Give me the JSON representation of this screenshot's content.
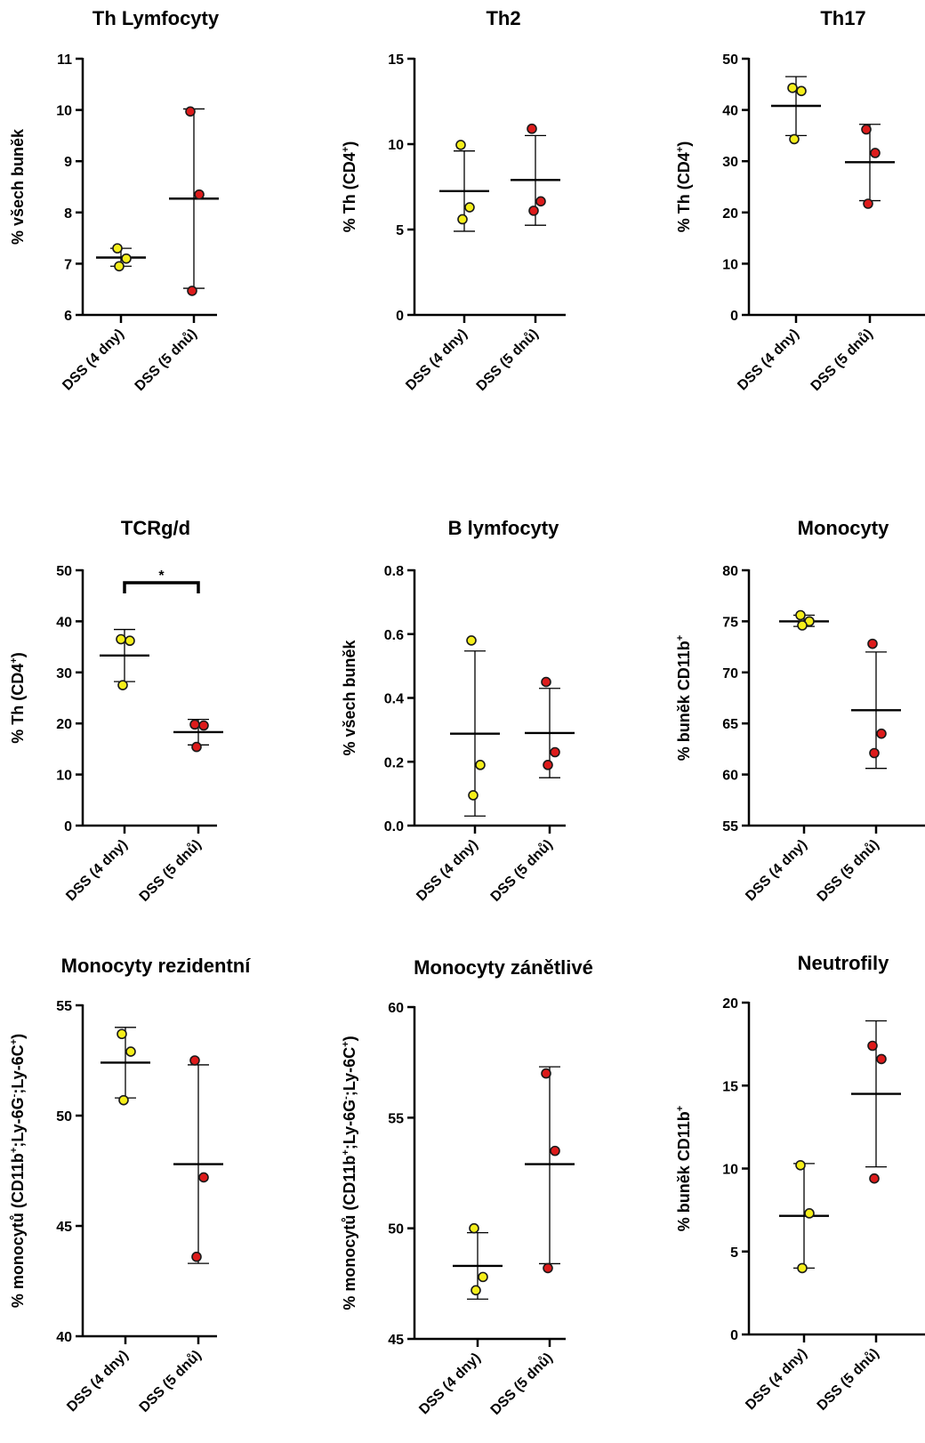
{
  "colors": {
    "group1": "#f5ee1a",
    "group2": "#dd1b1b",
    "stroke": "#1a1a1a"
  },
  "categories": [
    "DSS (4 dny)",
    "DSS (5 dnů)"
  ],
  "chart_data": [
    {
      "type": "scatter",
      "title": "Th Lymfocyty",
      "ylabel_parts": [
        {
          "t": "% všech buněk"
        }
      ],
      "ylim": [
        6,
        11
      ],
      "yticks": [
        6,
        7,
        8,
        9,
        10,
        11
      ],
      "categories": [
        "DSS (4 dny)",
        "DSS (5 dnů)"
      ],
      "groups": [
        {
          "points": [
            7.3,
            7.1,
            6.95
          ],
          "mean": 7.12,
          "err_lo": 6.95,
          "err_hi": 7.3
        },
        {
          "points": [
            9.97,
            8.35,
            6.47
          ],
          "mean": 8.27,
          "err_lo": 6.52,
          "err_hi": 10.02
        }
      ]
    },
    {
      "type": "scatter",
      "title": "Th2",
      "ylabel_parts": [
        {
          "t": "% Th (CD4"
        },
        {
          "t": "+",
          "sup": true
        },
        {
          "t": ")"
        }
      ],
      "ylim": [
        0,
        15
      ],
      "yticks": [
        0,
        5,
        10,
        15
      ],
      "categories": [
        "DSS (4 dny)",
        "DSS (5 dnů)"
      ],
      "groups": [
        {
          "points": [
            9.95,
            6.3,
            5.6
          ],
          "mean": 7.25,
          "err_lo": 4.9,
          "err_hi": 9.6
        },
        {
          "points": [
            10.9,
            6.65,
            6.1
          ],
          "mean": 7.9,
          "err_lo": 5.25,
          "err_hi": 10.5
        }
      ]
    },
    {
      "type": "scatter",
      "title": "Th17",
      "ylabel_parts": [
        {
          "t": "% Th (CD4"
        },
        {
          "t": "+",
          "sup": true
        },
        {
          "t": ")"
        }
      ],
      "ylim": [
        0,
        50
      ],
      "yticks": [
        0,
        10,
        20,
        30,
        40,
        50
      ],
      "categories": [
        "DSS (4 dny)",
        "DSS (5 dnů)"
      ],
      "groups": [
        {
          "points": [
            44.3,
            43.7,
            34.3
          ],
          "mean": 40.8,
          "err_lo": 35.0,
          "err_hi": 46.5
        },
        {
          "points": [
            36.2,
            31.6,
            21.7
          ],
          "mean": 29.8,
          "err_lo": 22.3,
          "err_hi": 37.2
        }
      ]
    },
    {
      "type": "scatter",
      "title": "TCRg/d",
      "ylabel_parts": [
        {
          "t": "% Th (CD4"
        },
        {
          "t": "+",
          "sup": true
        },
        {
          "t": ")"
        }
      ],
      "ylim": [
        0,
        50
      ],
      "yticks": [
        0,
        10,
        20,
        30,
        40,
        50
      ],
      "categories": [
        "DSS (4 dny)",
        "DSS (5 dnů)"
      ],
      "significance": "*",
      "groups": [
        {
          "points": [
            36.5,
            36.2,
            27.5
          ],
          "mean": 33.3,
          "err_lo": 28.2,
          "err_hi": 38.4
        },
        {
          "points": [
            19.8,
            19.6,
            15.4
          ],
          "mean": 18.3,
          "err_lo": 15.8,
          "err_hi": 20.8
        }
      ]
    },
    {
      "type": "scatter",
      "title": "B lymfocyty",
      "ylabel_parts": [
        {
          "t": "% všech buněk"
        }
      ],
      "ylim": [
        0,
        0.8
      ],
      "yticks": [
        0.0,
        0.2,
        0.4,
        0.6,
        0.8
      ],
      "ytick_labels": [
        "0.0",
        "0.2",
        "0.4",
        "0.6",
        "0.8"
      ],
      "categories": [
        "DSS (4 dny)",
        "DSS (5 dnů)"
      ],
      "groups": [
        {
          "points": [
            0.58,
            0.19,
            0.095
          ],
          "mean": 0.288,
          "err_lo": 0.03,
          "err_hi": 0.547
        },
        {
          "points": [
            0.45,
            0.23,
            0.19
          ],
          "mean": 0.29,
          "err_lo": 0.15,
          "err_hi": 0.43
        }
      ]
    },
    {
      "type": "scatter",
      "title": "Monocyty",
      "ylabel_parts": [
        {
          "t": "% buněk CD11b"
        },
        {
          "t": "+",
          "sup": true
        }
      ],
      "ylim": [
        55,
        80
      ],
      "yticks": [
        55,
        60,
        65,
        70,
        75,
        80
      ],
      "categories": [
        "DSS (4 dny)",
        "DSS (5 dnů)"
      ],
      "groups": [
        {
          "points": [
            75.6,
            75.0,
            74.6
          ],
          "mean": 75.0,
          "err_lo": 74.5,
          "err_hi": 75.6
        },
        {
          "points": [
            72.8,
            64.0,
            62.1
          ],
          "mean": 66.3,
          "err_lo": 60.6,
          "err_hi": 72.0
        }
      ]
    },
    {
      "type": "scatter",
      "title": "Monocyty rezidentní",
      "ylabel_parts": [
        {
          "t": "% monocytů (CD11b"
        },
        {
          "t": "+",
          "sup": true
        },
        {
          "t": ";Ly-6G"
        },
        {
          "t": "-",
          "sup": true
        },
        {
          "t": ";Ly-6C"
        },
        {
          "t": "+",
          "sup": true
        },
        {
          "t": ")"
        }
      ],
      "ylim": [
        40,
        55
      ],
      "yticks": [
        40,
        45,
        50,
        55
      ],
      "categories": [
        "DSS (4 dny)",
        "DSS (5 dnů)"
      ],
      "groups": [
        {
          "points": [
            53.7,
            52.9,
            50.7
          ],
          "mean": 52.4,
          "err_lo": 50.8,
          "err_hi": 54.0
        },
        {
          "points": [
            52.5,
            47.2,
            43.6
          ],
          "mean": 47.8,
          "err_lo": 43.3,
          "err_hi": 52.3
        }
      ]
    },
    {
      "type": "scatter",
      "title": "Monocyty zánětlivé",
      "ylabel_parts": [
        {
          "t": "% monocytů (CD11b"
        },
        {
          "t": "+",
          "sup": true
        },
        {
          "t": ";Ly-6G"
        },
        {
          "t": "-",
          "sup": true
        },
        {
          "t": ";Ly-6C"
        },
        {
          "t": "+",
          "sup": true
        },
        {
          "t": ")"
        }
      ],
      "ylim": [
        45,
        60
      ],
      "yticks": [
        45,
        50,
        55,
        60
      ],
      "categories": [
        "DSS (4 dny)",
        "DSS (5 dnů)"
      ],
      "groups": [
        {
          "points": [
            50.0,
            47.8,
            47.2
          ],
          "mean": 48.3,
          "err_lo": 46.8,
          "err_hi": 49.8
        },
        {
          "points": [
            57.0,
            53.5,
            48.2
          ],
          "mean": 52.9,
          "err_lo": 48.4,
          "err_hi": 57.3
        }
      ]
    },
    {
      "type": "scatter",
      "title": "Neutrofily",
      "ylabel_parts": [
        {
          "t": "% buněk CD11b"
        },
        {
          "t": "+",
          "sup": true
        }
      ],
      "ylim": [
        0,
        20
      ],
      "yticks": [
        0,
        5,
        10,
        15,
        20
      ],
      "categories": [
        "DSS (4 dny)",
        "DSS (5 dnů)"
      ],
      "groups": [
        {
          "points": [
            10.2,
            7.3,
            4.0
          ],
          "mean": 7.15,
          "err_lo": 4.0,
          "err_hi": 10.3
        },
        {
          "points": [
            17.4,
            16.6,
            9.4
          ],
          "mean": 14.5,
          "err_lo": 10.1,
          "err_hi": 18.9
        }
      ]
    }
  ]
}
